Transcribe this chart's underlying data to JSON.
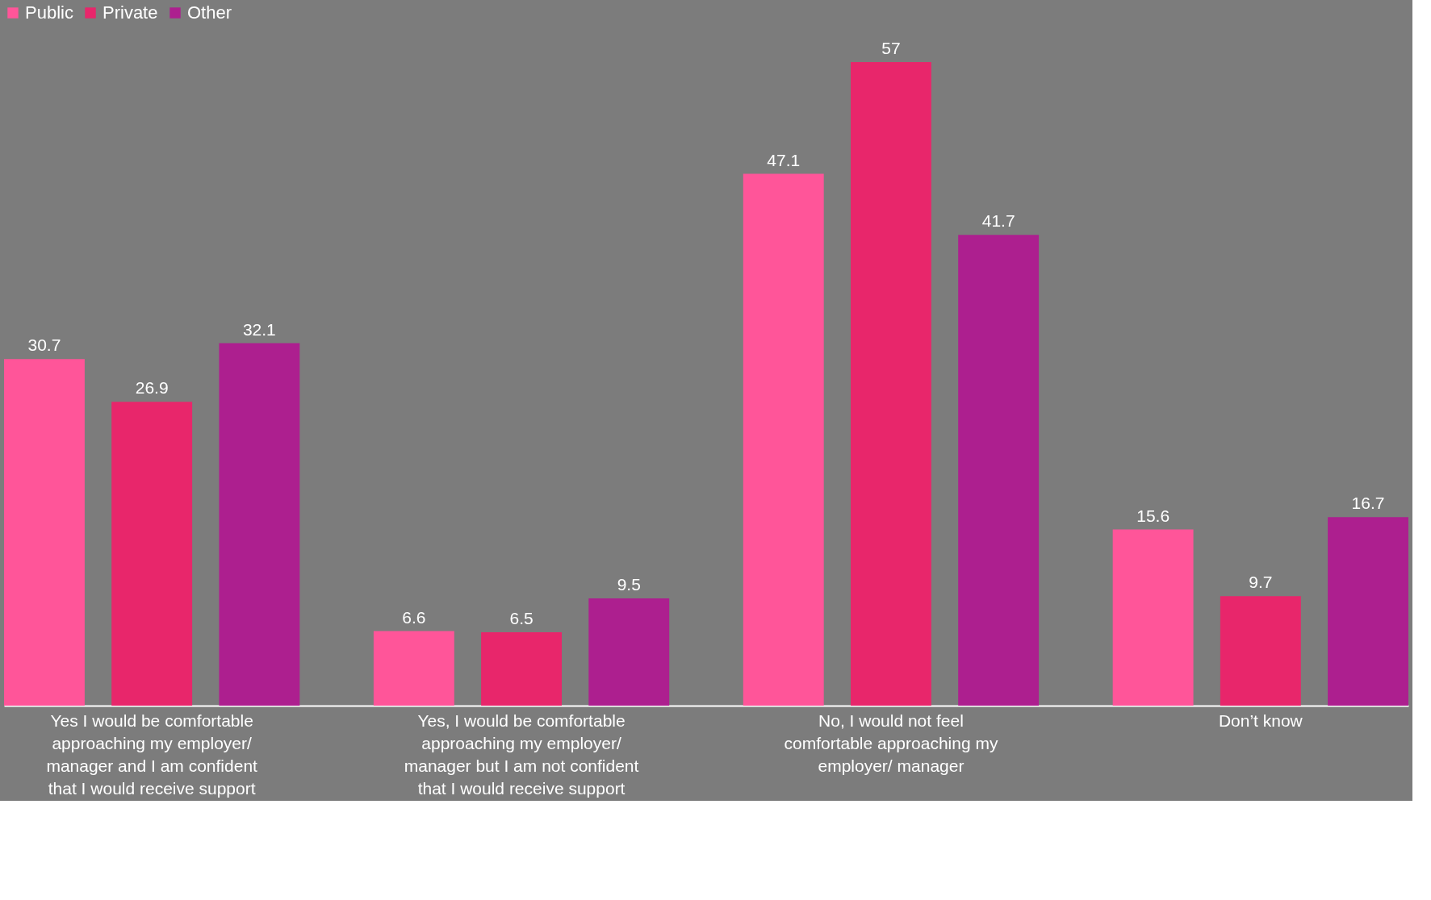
{
  "chart_data": {
    "type": "bar",
    "categories": [
      "Yes I would be comfortable approaching my employer/ manager and I am confident that I would receive support",
      "Yes, I would be comfortable approaching my employer/ manager but I am not confident that I would receive support",
      "No, I would not feel comfortable approaching my employer/ manager",
      "Don’t know"
    ],
    "series": [
      {
        "name": "Public",
        "color": "#ff5599",
        "values": [
          30.7,
          6.6,
          47.1,
          15.6
        ]
      },
      {
        "name": "Private",
        "color": "#e8266b",
        "values": [
          26.9,
          6.5,
          57,
          9.7
        ]
      },
      {
        "name": "Other",
        "color": "#ad1f8f",
        "values": [
          32.1,
          9.5,
          41.7,
          16.7
        ]
      }
    ],
    "data_labels": true,
    "legend": "top",
    "grid": false
  }
}
